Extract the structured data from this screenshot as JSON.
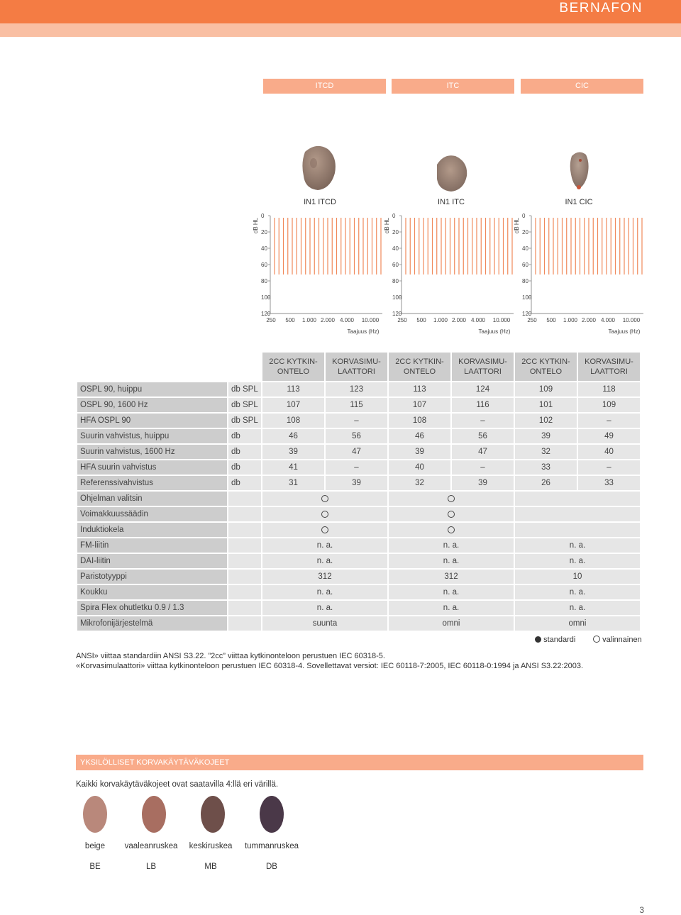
{
  "header": {
    "brand": "BERNAFON"
  },
  "models": {
    "tabs": [
      "ITCD",
      "ITC",
      "CIC"
    ],
    "names": [
      "IN1 ITCD",
      "IN1 ITC",
      "IN1 CIC"
    ]
  },
  "audiogram": {
    "ylabel": "dB HL",
    "yticks": [
      "0",
      "20",
      "40",
      "60",
      "80",
      "100",
      "120"
    ],
    "xticks": [
      "250",
      "500",
      "1.000",
      "2.000",
      "4.000",
      "10.000"
    ],
    "xlabel": "Taajuus (Hz)"
  },
  "table": {
    "headers": [
      "2CC KYTKIN-\nONTELO",
      "KORVASIMU-\nLAATTORI",
      "2CC KYTKIN-\nONTELO",
      "KORVASIMU-\nLAATTORI",
      "2CC KYTKIN-\nONTELO",
      "KORVASIMU-\nLAATTORI"
    ],
    "numeric_rows": [
      {
        "label": "OSPL 90, huippu",
        "unit": "db SPL",
        "values": [
          "113",
          "123",
          "113",
          "124",
          "109",
          "118"
        ]
      },
      {
        "label": "OSPL 90, 1600 Hz",
        "unit": "db SPL",
        "values": [
          "107",
          "115",
          "107",
          "116",
          "101",
          "109"
        ]
      },
      {
        "label": "HFA OSPL 90",
        "unit": "db SPL",
        "values": [
          "108",
          "–",
          "108",
          "–",
          "102",
          "–"
        ]
      },
      {
        "label": "Suurin vahvistus, huippu",
        "unit": "db",
        "values": [
          "46",
          "56",
          "46",
          "56",
          "39",
          "49"
        ]
      },
      {
        "label": "Suurin vahvistus, 1600 Hz",
        "unit": "db",
        "values": [
          "39",
          "47",
          "39",
          "47",
          "32",
          "40"
        ]
      },
      {
        "label": "HFA suurin vahvistus",
        "unit": "db",
        "values": [
          "41",
          "–",
          "40",
          "–",
          "33",
          "–"
        ]
      },
      {
        "label": "Referenssivahvistus",
        "unit": "db",
        "values": [
          "31",
          "39",
          "32",
          "39",
          "26",
          "33"
        ]
      }
    ],
    "feature_rows": [
      {
        "label": "Ohjelman valitsin",
        "values": [
          "optional",
          "optional",
          ""
        ]
      },
      {
        "label": "Voimakkuussäädin",
        "values": [
          "optional",
          "optional",
          ""
        ]
      },
      {
        "label": "Induktiokela",
        "values": [
          "optional",
          "optional",
          ""
        ]
      },
      {
        "label": "FM-liitin",
        "values": [
          "n. a.",
          "n. a.",
          "n. a."
        ]
      },
      {
        "label": "DAI-liitin",
        "values": [
          "n. a.",
          "n. a.",
          "n. a."
        ]
      },
      {
        "label": "Paristotyyppi",
        "values": [
          "312",
          "312",
          "10"
        ]
      },
      {
        "label": "Koukku",
        "values": [
          "n. a.",
          "n. a.",
          "n. a."
        ]
      },
      {
        "label": "Spira Flex ohutletku 0.9 / 1.3",
        "values": [
          "n. a.",
          "n. a.",
          "n. a."
        ]
      },
      {
        "label": "Mikrofonijärjestelmä",
        "values": [
          "suunta",
          "omni",
          "omni"
        ]
      }
    ]
  },
  "legend": {
    "standard": "standardi",
    "optional": "valinnainen"
  },
  "notes": [
    "ANSI» viittaa standardiin ANSI S3.22. ”2cc” viittaa kytkinonteloon perustuen IEC 60318-5.",
    "«Korvasimulaattori» viittaa kytkinonteloon perustuen IEC 60318-4. Sovellettavat versiot: IEC 60118-7:2005, IEC 60118-0:1994 ja ANSI S3.22:2003."
  ],
  "colors_section": {
    "title": "YKSILÖLLISET KORVAKÄYTÄVÄKOJEET",
    "intro": "Kaikki korvakäytäväkojeet ovat saatavilla 4:llä eri värillä.",
    "swatches": [
      {
        "name": "beige",
        "code": "BE",
        "color": "#b9887b"
      },
      {
        "name": "vaaleanruskea",
        "code": "LB",
        "color": "#a86e61"
      },
      {
        "name": "keskiruskea",
        "code": "MB",
        "color": "#6e4f4a"
      },
      {
        "name": "tummanruskea",
        "code": "DB",
        "color": "#4a3848"
      }
    ]
  },
  "page_number": "3"
}
